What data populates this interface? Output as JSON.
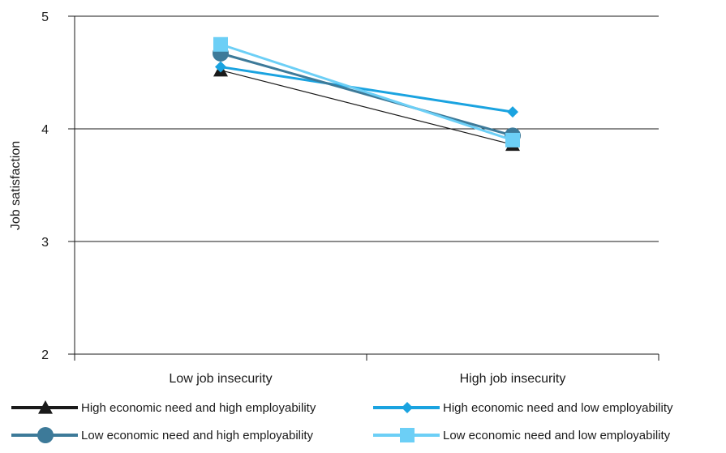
{
  "chart_data": {
    "type": "line",
    "title": "",
    "xlabel": "",
    "ylabel": "Job satisfaction",
    "categories": [
      "Low job insecurity",
      "High job insecurity"
    ],
    "ylim": [
      2,
      5
    ],
    "yticks": [
      "2",
      "3",
      "4",
      "5"
    ],
    "grid": true,
    "legend_position": "bottom",
    "series": [
      {
        "name": "High economic need and high employability",
        "values": [
          4.52,
          3.86
        ],
        "color": "#1a1a1a",
        "marker": "triangle"
      },
      {
        "name": "High economic need and low employability",
        "values": [
          4.55,
          4.15
        ],
        "color": "#1aa3e0",
        "marker": "diamond"
      },
      {
        "name": "Low economic need and high employability",
        "values": [
          4.67,
          3.94
        ],
        "color": "#3d7a99",
        "marker": "circle"
      },
      {
        "name": "Low economic need and low employability",
        "values": [
          4.75,
          3.9
        ],
        "color": "#6ccff6",
        "marker": "square"
      }
    ]
  }
}
